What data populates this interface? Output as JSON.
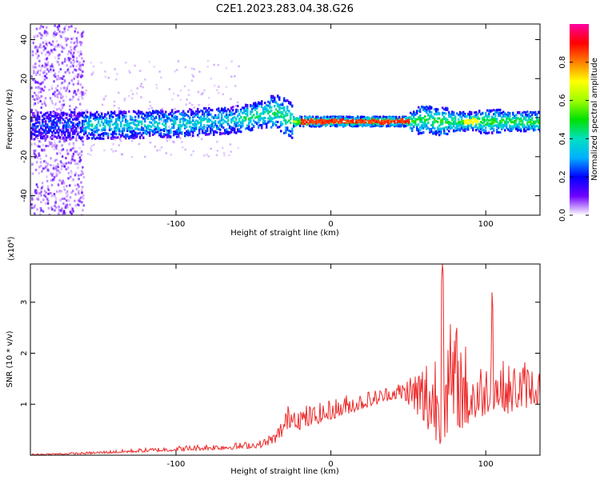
{
  "figure": {
    "title": "C2E1.2023.283.04.38.G26"
  },
  "chart_data": [
    {
      "type": "heatmap",
      "xlabel": "Height of straight line (km)",
      "ylabel": "Frequency (Hz)",
      "xlim": [
        -194,
        135
      ],
      "ylim": [
        -50,
        48
      ],
      "xticks": [
        -100,
        0,
        100
      ],
      "yticks": [
        -40,
        -20,
        0,
        20,
        40
      ],
      "grid": false,
      "colorbar": {
        "label": "Normalized spectral amplitude",
        "range": [
          0.0,
          1.0
        ],
        "ticks": [
          0.0,
          0.2,
          0.4,
          0.6,
          0.8
        ],
        "tick_labels": [
          "0.0",
          "0.2",
          "0.4",
          "0.6",
          "0.8"
        ],
        "colormap": "rainbow-white-to-magenta"
      },
      "features": {
        "noise_band_x": [
          -194,
          -160
        ],
        "ridge_center_hz": [
          [
            -190,
            -4
          ],
          [
            -150,
            -4
          ],
          [
            -100,
            -3
          ],
          [
            -60,
            -1
          ],
          [
            -42,
            2
          ],
          [
            -35,
            3
          ],
          [
            -25,
            -2
          ],
          [
            0,
            -2
          ],
          [
            50,
            -2
          ],
          [
            60,
            -1
          ],
          [
            70,
            -2
          ],
          [
            85,
            -2
          ],
          [
            110,
            -2
          ],
          [
            135,
            -2
          ]
        ],
        "peak_segment_x": [
          -20,
          50
        ]
      }
    },
    {
      "type": "line",
      "xlabel": "Height of straight line (km)",
      "ylabel": "SNR (10 * v/v)",
      "y_multiplier": "(x10⁴)",
      "xlim": [
        -194,
        135
      ],
      "ylim": [
        0,
        3.75
      ],
      "xticks": [
        -100,
        0,
        100
      ],
      "yticks": [
        1,
        2,
        3
      ],
      "grid": false,
      "color": "#ee2a2a",
      "series_envelope": {
        "x": [
          -194,
          -160,
          -130,
          -100,
          -80,
          -60,
          -45,
          -35,
          -30,
          -25,
          -20,
          -10,
          0,
          10,
          20,
          30,
          40,
          45,
          50,
          55,
          60,
          65,
          70,
          72,
          75,
          80,
          85,
          90,
          95,
          100,
          104,
          106,
          110,
          115,
          120,
          125,
          130,
          135
        ],
        "y": [
          0.03,
          0.06,
          0.12,
          0.18,
          0.22,
          0.25,
          0.3,
          0.5,
          0.9,
          1.1,
          1.0,
          1.0,
          1.1,
          1.2,
          1.25,
          1.3,
          1.4,
          1.45,
          1.6,
          1.8,
          2.0,
          2.2,
          2.5,
          3.75,
          2.6,
          2.7,
          2.4,
          2.0,
          1.9,
          1.8,
          3.2,
          2.0,
          1.9,
          1.8,
          1.9,
          1.9,
          1.8,
          1.7
        ],
        "baseline": [
          0.0,
          0.02,
          0.05,
          0.08,
          0.1,
          0.12,
          0.15,
          0.25,
          0.4,
          0.6,
          0.5,
          0.6,
          0.7,
          0.8,
          0.9,
          1.0,
          1.1,
          1.1,
          1.0,
          0.8,
          0.5,
          0.4,
          0.2,
          0.3,
          0.4,
          0.6,
          0.5,
          0.6,
          0.7,
          0.8,
          0.9,
          0.9,
          0.9,
          0.8,
          0.9,
          0.9,
          1.0,
          1.0
        ]
      }
    }
  ]
}
